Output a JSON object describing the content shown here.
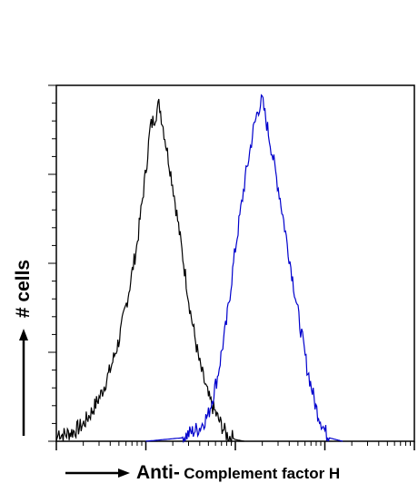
{
  "chart_data": {
    "type": "histogram-line",
    "title": "",
    "xlabel_prefix": "Anti-",
    "xlabel_main": "Complement factor H",
    "ylabel": "# cells",
    "x_scale": "log",
    "xlim_decades": [
      0,
      4
    ],
    "ylim": [
      0,
      100
    ],
    "grid": false,
    "series": [
      {
        "color": "#000000",
        "points": [
          [
            0.0,
            0
          ],
          [
            0.03,
            3
          ],
          [
            0.05,
            2
          ],
          [
            0.1,
            2
          ],
          [
            0.2,
            3
          ],
          [
            0.3,
            5
          ],
          [
            0.4,
            9
          ],
          [
            0.5,
            14
          ],
          [
            0.6,
            21
          ],
          [
            0.7,
            30
          ],
          [
            0.8,
            43
          ],
          [
            0.9,
            58
          ],
          [
            0.95,
            69
          ],
          [
            1.0,
            80
          ],
          [
            1.05,
            93
          ],
          [
            1.1,
            96
          ],
          [
            1.15,
            100
          ],
          [
            1.2,
            92
          ],
          [
            1.3,
            76
          ],
          [
            1.4,
            57
          ],
          [
            1.5,
            38
          ],
          [
            1.6,
            23
          ],
          [
            1.7,
            13
          ],
          [
            1.8,
            7
          ],
          [
            1.9,
            2
          ],
          [
            2.0,
            0.5
          ],
          [
            2.1,
            0
          ]
        ]
      },
      {
        "color": "#0000cc",
        "points": [
          [
            1.0,
            0
          ],
          [
            1.2,
            0.5
          ],
          [
            1.4,
            1
          ],
          [
            1.6,
            4
          ],
          [
            1.7,
            8
          ],
          [
            1.8,
            19
          ],
          [
            1.9,
            35
          ],
          [
            2.0,
            57
          ],
          [
            2.1,
            76
          ],
          [
            2.2,
            92
          ],
          [
            2.25,
            98
          ],
          [
            2.3,
            101
          ],
          [
            2.35,
            94
          ],
          [
            2.4,
            87
          ],
          [
            2.5,
            72
          ],
          [
            2.6,
            55
          ],
          [
            2.7,
            38
          ],
          [
            2.8,
            22
          ],
          [
            2.9,
            10
          ],
          [
            3.0,
            3
          ],
          [
            3.05,
            1
          ],
          [
            3.2,
            0
          ]
        ]
      }
    ]
  }
}
